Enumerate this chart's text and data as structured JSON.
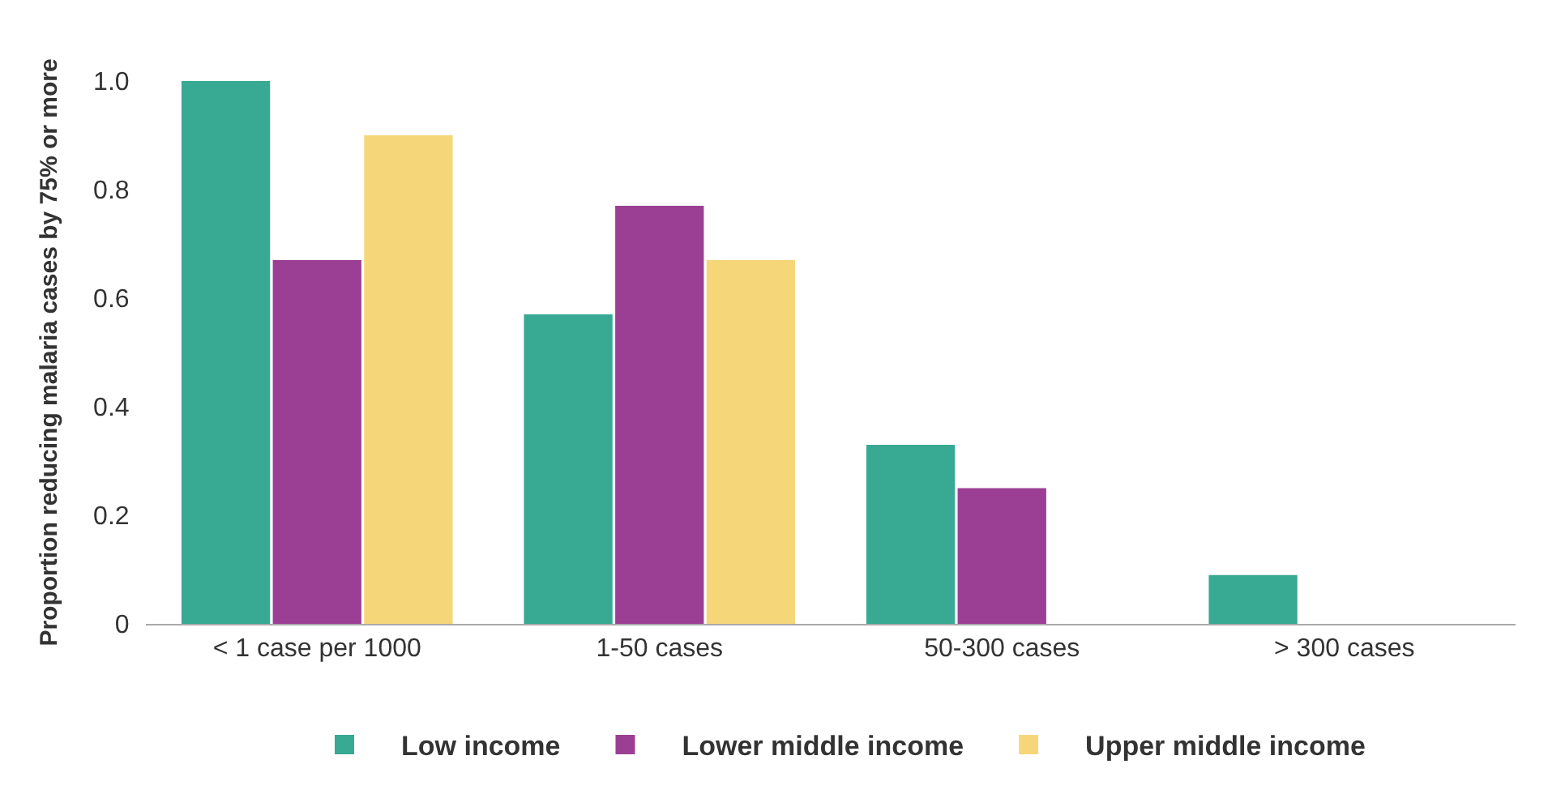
{
  "chart_data": {
    "type": "bar",
    "ylabel": "Proportion reducing malaria cases by 75% or more",
    "categories": [
      "< 1 case per 1000",
      "1-50 cases",
      "50-300 cases",
      "> 300 cases"
    ],
    "series": [
      {
        "name": "Low income",
        "color": "#38a993",
        "values": [
          1.0,
          0.57,
          0.33,
          0.09
        ]
      },
      {
        "name": "Lower middle income",
        "color": "#9b3f94",
        "values": [
          0.67,
          0.77,
          0.25,
          0
        ]
      },
      {
        "name": "Upper middle income",
        "color": "#f5d77a",
        "values": [
          0.9,
          0.67,
          0,
          0
        ]
      }
    ],
    "ylim": [
      0,
      1
    ],
    "yticks": [
      0,
      0.2,
      0.4,
      0.6,
      0.8,
      {
        "value": 1,
        "label": "1.0"
      }
    ],
    "grid": false,
    "legend": "bottom"
  }
}
